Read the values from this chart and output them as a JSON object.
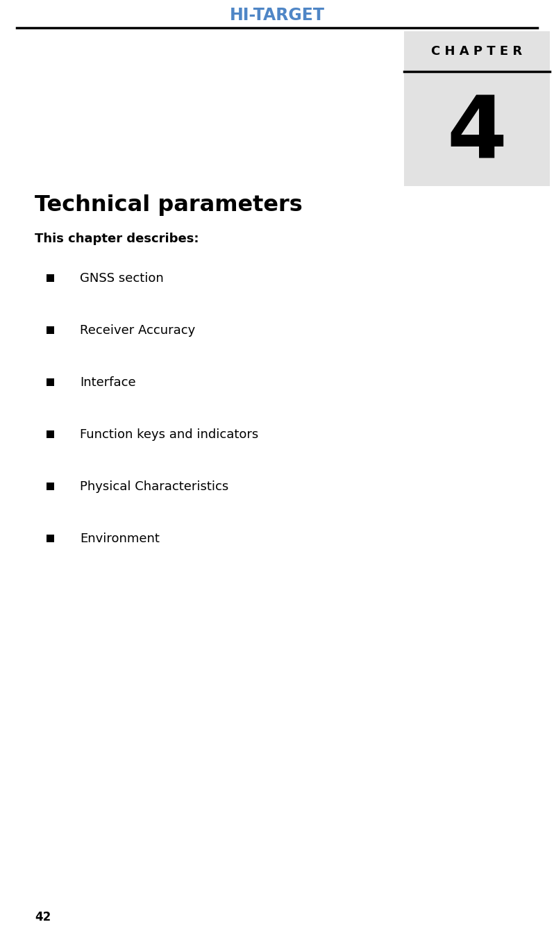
{
  "background_color": "#ffffff",
  "header_text": "HI-TARGET",
  "header_color": "#4f86c6",
  "header_line_color": "#000000",
  "chapter_label": "C H A P T E R",
  "chapter_number": "4",
  "chapter_box_color": "#e2e2e2",
  "title": "Technical parameters",
  "subtitle": "This chapter describes:",
  "bullet_items": [
    "GNSS section",
    "Receiver Accuracy",
    "Interface",
    "Function keys and indicators",
    "Physical Characteristics",
    "Environment"
  ],
  "page_number": "42",
  "title_fontsize": 23,
  "subtitle_fontsize": 13,
  "bullet_fontsize": 13,
  "chapter_label_fontsize": 13,
  "chapter_number_fontsize": 90,
  "header_fontsize": 17,
  "page_number_fontsize": 12
}
